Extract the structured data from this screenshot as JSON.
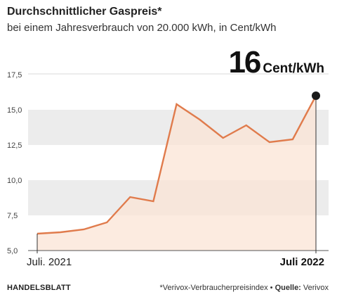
{
  "chart_data": {
    "type": "area",
    "title": "Durchschnittlicher Gaspreis*",
    "subtitle": "bei einem Jahresverbrauch von 20.000 kWh, in Cent/kWh",
    "highlight": {
      "value": "16",
      "unit": "Cent/kWh"
    },
    "x_start_label": "Juli. 2021",
    "x_end_label": "Juli 2022",
    "y_ticks": [
      "5,0",
      "7,5",
      "10,0",
      "12,5",
      "15,0",
      "17,5"
    ],
    "ylim": [
      5,
      17.5
    ],
    "series": [
      {
        "values": [
          6.2,
          6.3,
          6.5,
          7.0,
          8.8,
          8.5,
          15.4,
          14.3,
          13.0,
          13.9,
          12.7,
          12.9,
          16.0
        ]
      }
    ],
    "grid_bands": true,
    "colors": {
      "line": "#e07b4c",
      "fill": "#fbe4d6",
      "band": "#ececec",
      "marker": "#1a1a1a"
    }
  },
  "footer": {
    "brand": "HANDELSBLATT",
    "note": "*Verivox-Verbraucherpreisindex",
    "source_label": "Quelle:",
    "source": "Verivox"
  }
}
